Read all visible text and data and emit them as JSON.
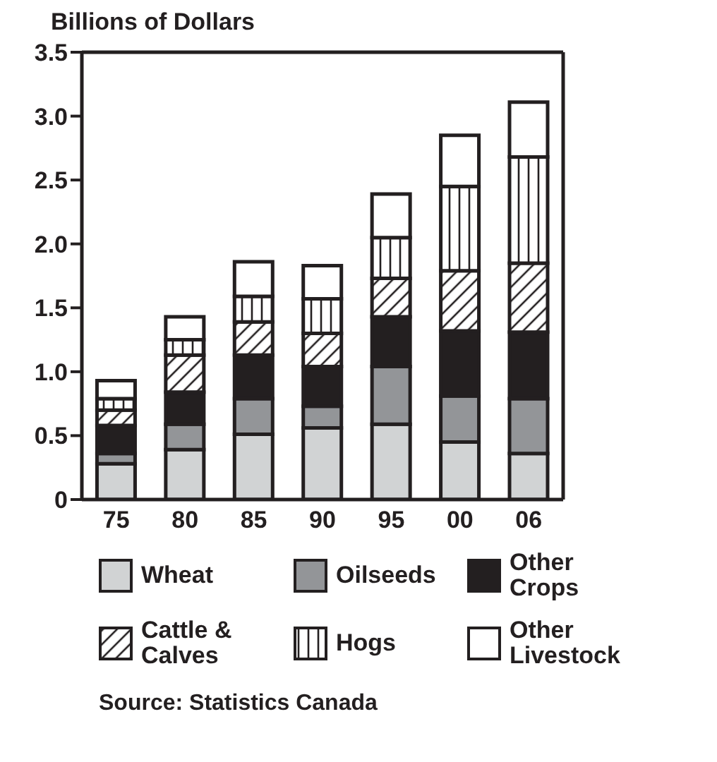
{
  "chart_data": {
    "type": "bar",
    "stacked": true,
    "ylabel": "Billions of Dollars",
    "categories": [
      "75",
      "80",
      "85",
      "90",
      "95",
      "00",
      "06"
    ],
    "series": [
      {
        "name": "Wheat",
        "color": "#d1d3d4",
        "values": [
          0.28,
          0.39,
          0.51,
          0.56,
          0.59,
          0.45,
          0.36
        ]
      },
      {
        "name": "Oilseeds",
        "color": "#939598",
        "values": [
          0.08,
          0.2,
          0.28,
          0.17,
          0.45,
          0.36,
          0.43
        ]
      },
      {
        "name": "Other Crops",
        "color": "#231f20",
        "values": [
          0.22,
          0.25,
          0.34,
          0.31,
          0.39,
          0.51,
          0.52
        ]
      },
      {
        "name": "Cattle & Calves",
        "color": "#231f20",
        "values": [
          0.12,
          0.29,
          0.26,
          0.26,
          0.3,
          0.47,
          0.54
        ]
      },
      {
        "name": "Hogs",
        "color": "#231f20",
        "values": [
          0.09,
          0.12,
          0.2,
          0.27,
          0.32,
          0.66,
          0.83
        ]
      },
      {
        "name": "Other Livestock",
        "color": "#ffffff",
        "values": [
          0.14,
          0.18,
          0.27,
          0.26,
          0.34,
          0.4,
          0.43
        ]
      }
    ],
    "ylim": [
      0,
      3.5
    ],
    "yticks": [
      0,
      {
        "value": 0.5,
        "label": "0.5"
      },
      {
        "value": 1,
        "label": "1.0"
      },
      1.5,
      {
        "value": 2,
        "label": "2.0"
      },
      2.5,
      {
        "value": 3,
        "label": "3.0"
      },
      3.5
    ],
    "grid": false,
    "legend": "bottom",
    "annotations": [
      "Source: Statistics Canada"
    ]
  }
}
